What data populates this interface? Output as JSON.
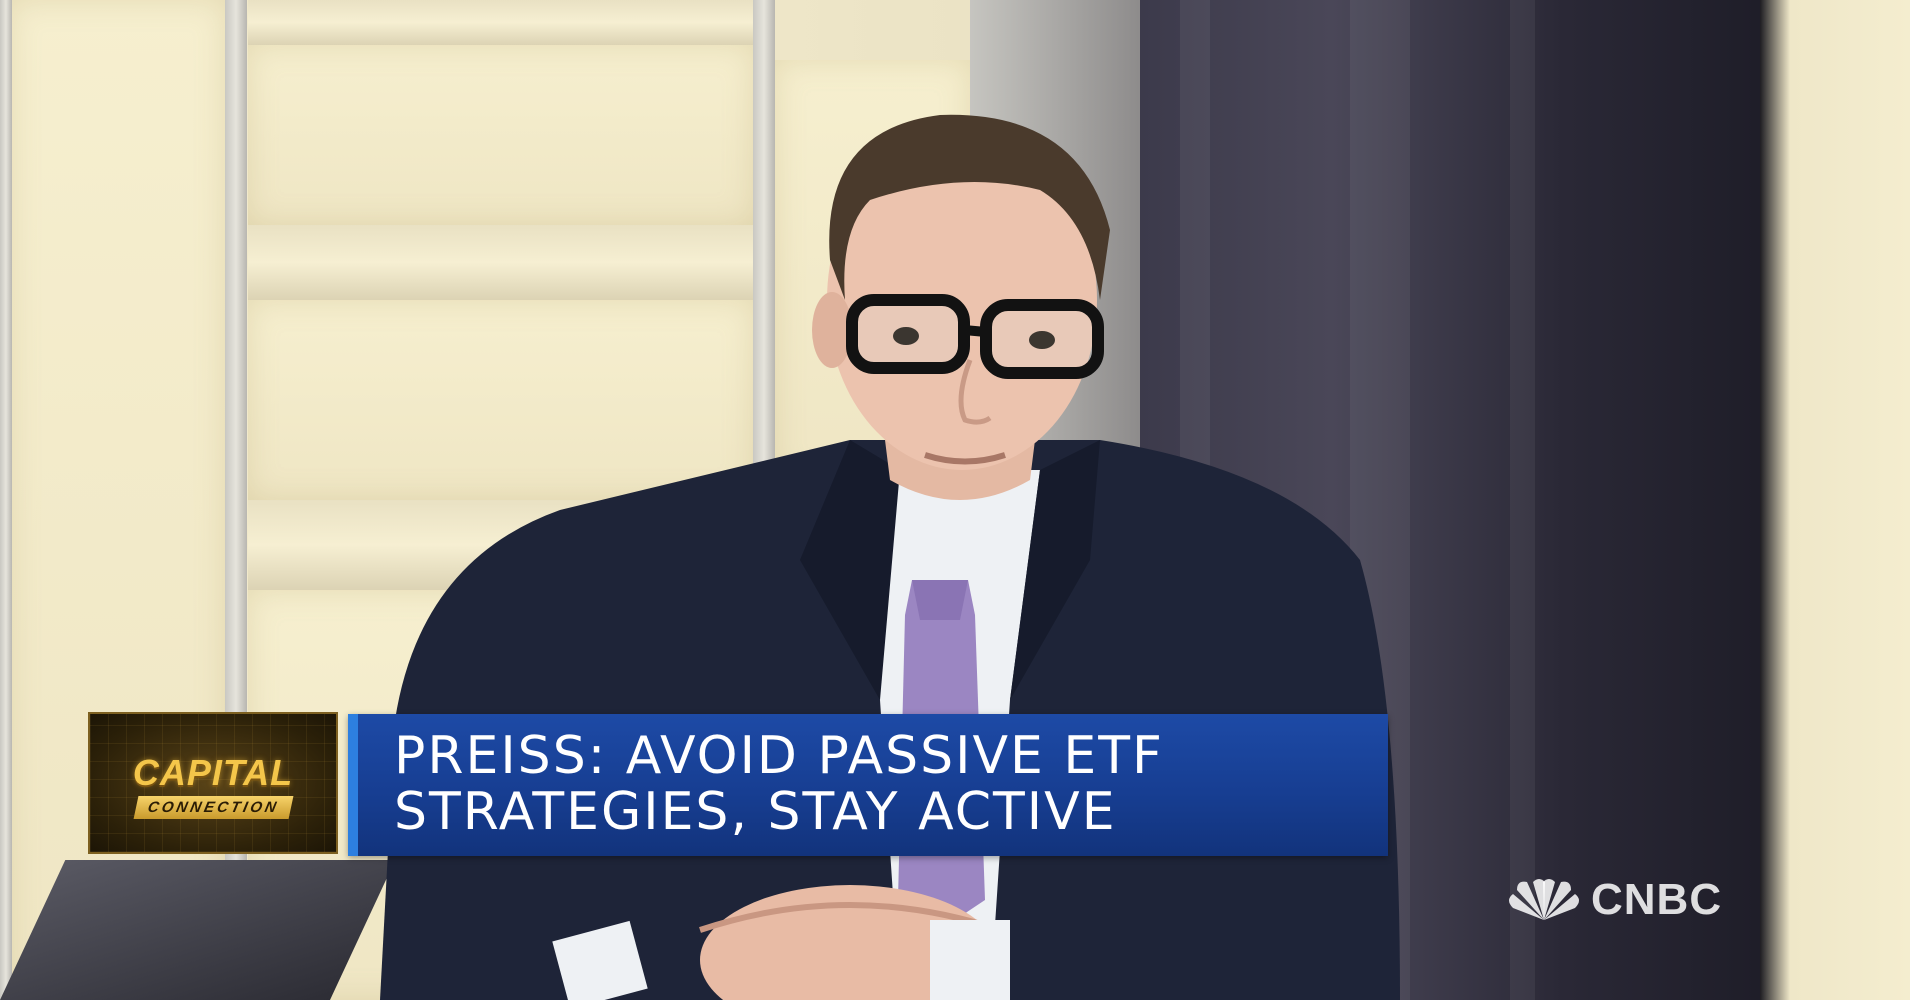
{
  "program": {
    "logo_line1": "CAPITAL",
    "logo_line2": "CONNECTION"
  },
  "lower_third": {
    "headline_lines": [
      "PREISS: AVOID PASSIVE ETF",
      "STRATEGIES, STAY ACTIVE"
    ],
    "bar_color": "#1d4aa6",
    "accent_color": "#2d7fe0"
  },
  "network": {
    "name": "CNBC",
    "icon": "peacock-icon"
  }
}
